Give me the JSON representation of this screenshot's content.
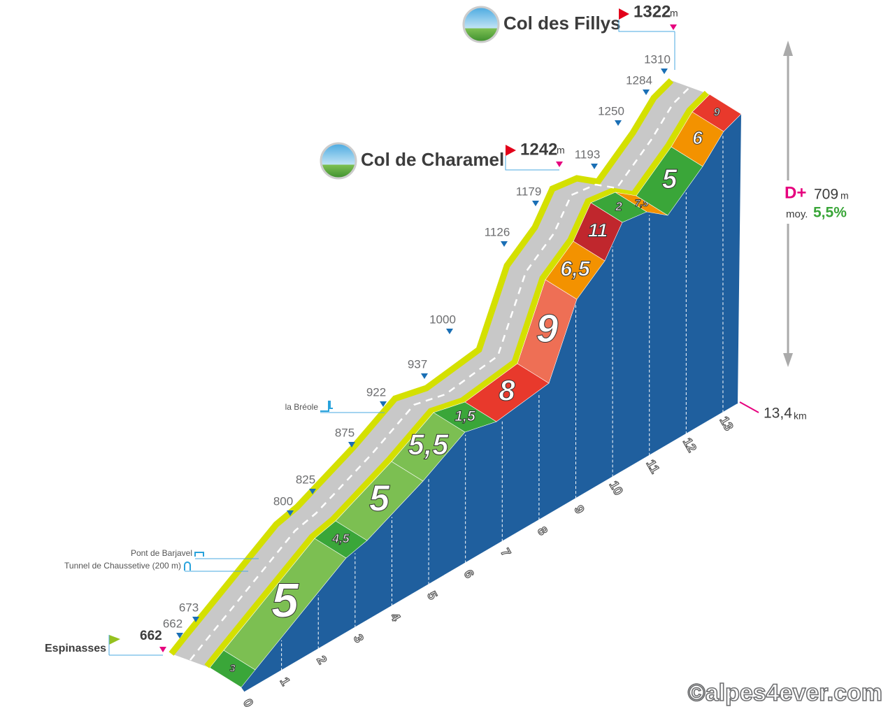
{
  "summits": [
    {
      "name": "Col des Fillys",
      "altitude": "1322",
      "unit": "m"
    },
    {
      "name": "Col de Charamel",
      "altitude": "1242",
      "unit": "m"
    }
  ],
  "start": {
    "name": "Espinasses",
    "altitude": "662"
  },
  "altitude_markers": [
    "662",
    "673",
    "800",
    "825",
    "875",
    "922",
    "937",
    "1000",
    "1126",
    "1179",
    "1193",
    "1250",
    "1284",
    "1310"
  ],
  "places": [
    "la Bréole",
    "Pont de Barjavel",
    "Tunnel de Chaussetive (200 m)"
  ],
  "gradients": [
    "3",
    "5",
    "4,5",
    "5",
    "5,5",
    "1,5",
    "8",
    "9",
    "6,5",
    "11",
    "2",
    "7,5",
    "5",
    "6",
    "9"
  ],
  "km_markers": [
    "0",
    "1",
    "2",
    "3",
    "4",
    "5",
    "6",
    "7",
    "8",
    "9",
    "10",
    "11",
    "12",
    "13"
  ],
  "total_distance": {
    "value": "13,4",
    "unit": "km"
  },
  "climb": {
    "label": "D+",
    "value": "709",
    "unit": "m",
    "average_label": "moy.",
    "average": "5,5%"
  },
  "copyright": "©alpes4ever.com"
}
